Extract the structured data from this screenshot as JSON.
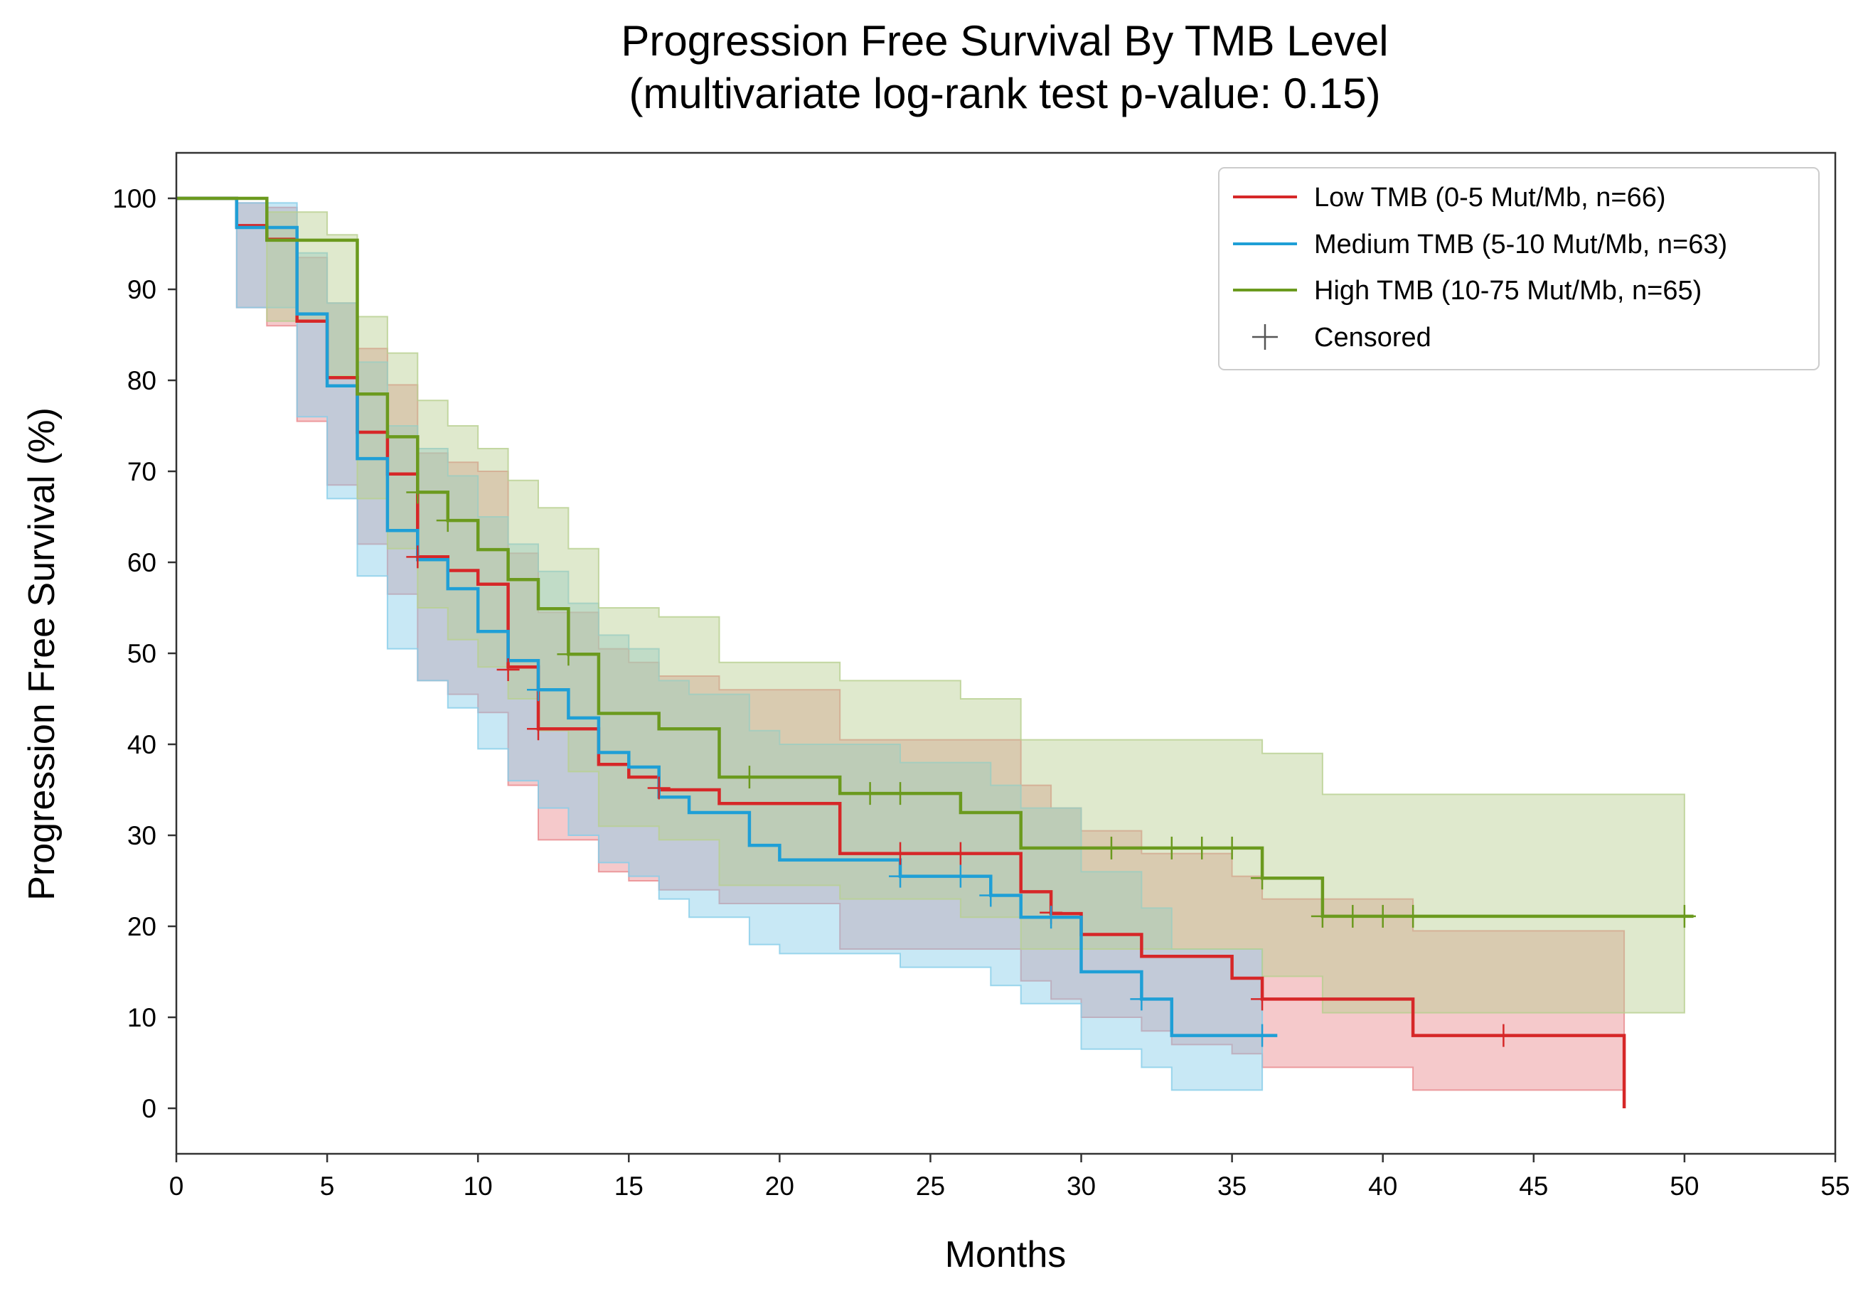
{
  "chart_data": {
    "type": "line",
    "subtype": "kaplan-meier",
    "title": "Progression Free Survival By TMB Level",
    "subtitle": "(multivariate log-rank test p-value: 0.15)",
    "xlabel": "Months",
    "ylabel": "Progression Free Survival (%)",
    "xlim": [
      0,
      55
    ],
    "ylim": [
      -5,
      105
    ],
    "xticks": [
      0,
      5,
      10,
      15,
      20,
      25,
      30,
      35,
      40,
      45,
      50,
      55
    ],
    "yticks": [
      0,
      10,
      20,
      30,
      40,
      50,
      60,
      70,
      80,
      90,
      100
    ],
    "grid": false,
    "legend_position": "top-right",
    "legend": {
      "censored_label": "Censored",
      "censored_color": "#555555"
    },
    "series": [
      {
        "name": "Low TMB (0-5 Mut/Mb, n=66)",
        "color": "#d62728",
        "fill": "#e8888c",
        "steps": [
          [
            0,
            100
          ],
          [
            2,
            97
          ],
          [
            3,
            95.5
          ],
          [
            4,
            86.5
          ],
          [
            5,
            80.3
          ],
          [
            6,
            74.3
          ],
          [
            7,
            69.7
          ],
          [
            8,
            60.6
          ],
          [
            9,
            59.1
          ],
          [
            10,
            57.6
          ],
          [
            11,
            48.5
          ],
          [
            12,
            41.7
          ],
          [
            14,
            37.8
          ],
          [
            15,
            36.4
          ],
          [
            16,
            35
          ],
          [
            18,
            33.5
          ],
          [
            22,
            28
          ],
          [
            28,
            23.8
          ],
          [
            29,
            21.4
          ],
          [
            30,
            19.1
          ],
          [
            32,
            16.7
          ],
          [
            35,
            14.3
          ],
          [
            36,
            12
          ],
          [
            41,
            8
          ],
          [
            48,
            0
          ]
        ],
        "end": 48,
        "ci_lower": [
          [
            0,
            100
          ],
          [
            2,
            88
          ],
          [
            3,
            86
          ],
          [
            4,
            75.5
          ],
          [
            5,
            68.5
          ],
          [
            6,
            62
          ],
          [
            7,
            56.5
          ],
          [
            8,
            47
          ],
          [
            9,
            45.5
          ],
          [
            10,
            43.5
          ],
          [
            11,
            35.5
          ],
          [
            12,
            29.5
          ],
          [
            14,
            26
          ],
          [
            15,
            25
          ],
          [
            16,
            24
          ],
          [
            18,
            22.5
          ],
          [
            22,
            17.5
          ],
          [
            28,
            14
          ],
          [
            29,
            12
          ],
          [
            30,
            10
          ],
          [
            32,
            8.5
          ],
          [
            33,
            7
          ],
          [
            35,
            6
          ],
          [
            36,
            4.5
          ],
          [
            41,
            2
          ],
          [
            48,
            2
          ]
        ],
        "ci_upper": [
          [
            0,
            100
          ],
          [
            2,
            99.5
          ],
          [
            3,
            99
          ],
          [
            4,
            93.5
          ],
          [
            5,
            88.5
          ],
          [
            6,
            83.5
          ],
          [
            7,
            79.5
          ],
          [
            8,
            72
          ],
          [
            9,
            71
          ],
          [
            10,
            70
          ],
          [
            11,
            61
          ],
          [
            12,
            54.5
          ],
          [
            14,
            50.5
          ],
          [
            15,
            49
          ],
          [
            16,
            47.5
          ],
          [
            18,
            46
          ],
          [
            22,
            40.5
          ],
          [
            28,
            35.5
          ],
          [
            29,
            33
          ],
          [
            30,
            30.5
          ],
          [
            32,
            28
          ],
          [
            35,
            25.5
          ],
          [
            36,
            23
          ],
          [
            41,
            19.5
          ],
          [
            48,
            19.5
          ]
        ],
        "censored": [
          [
            8,
            60.6
          ],
          [
            11,
            48.2
          ],
          [
            12,
            41.7
          ],
          [
            16,
            35.2
          ],
          [
            24,
            28
          ],
          [
            26,
            28
          ],
          [
            29,
            21.5
          ],
          [
            36,
            12
          ],
          [
            44,
            8
          ]
        ]
      },
      {
        "name": "Medium TMB (5-10 Mut/Mb, n=63)",
        "color": "#1f9fd6",
        "fill": "#86cde8",
        "steps": [
          [
            0,
            100
          ],
          [
            2,
            96.8
          ],
          [
            4,
            87.3
          ],
          [
            5,
            79.4
          ],
          [
            6,
            71.4
          ],
          [
            7,
            63.5
          ],
          [
            8,
            60.3
          ],
          [
            9,
            57.1
          ],
          [
            10,
            52.4
          ],
          [
            11,
            49.2
          ],
          [
            12,
            46
          ],
          [
            13,
            42.9
          ],
          [
            14,
            39.1
          ],
          [
            15,
            37.5
          ],
          [
            16,
            34.2
          ],
          [
            17,
            32.5
          ],
          [
            19,
            28.9
          ],
          [
            20,
            27.3
          ],
          [
            24,
            25.5
          ],
          [
            27,
            23.4
          ],
          [
            28,
            21
          ],
          [
            30,
            15
          ],
          [
            32,
            12
          ],
          [
            33,
            8
          ],
          [
            36,
            8
          ]
        ],
        "end": 36.5,
        "ci_lower": [
          [
            0,
            100
          ],
          [
            2,
            88
          ],
          [
            4,
            76
          ],
          [
            5,
            67
          ],
          [
            6,
            58.5
          ],
          [
            7,
            50.5
          ],
          [
            8,
            47
          ],
          [
            9,
            44
          ],
          [
            10,
            39.5
          ],
          [
            11,
            36
          ],
          [
            12,
            33
          ],
          [
            13,
            30
          ],
          [
            14,
            27
          ],
          [
            15,
            25.5
          ],
          [
            16,
            23
          ],
          [
            17,
            21
          ],
          [
            19,
            18
          ],
          [
            20,
            17
          ],
          [
            24,
            15.5
          ],
          [
            27,
            13.5
          ],
          [
            28,
            11.5
          ],
          [
            30,
            6.5
          ],
          [
            32,
            4.5
          ],
          [
            33,
            2
          ],
          [
            36,
            2
          ]
        ],
        "ci_upper": [
          [
            0,
            100
          ],
          [
            2,
            99.5
          ],
          [
            4,
            94
          ],
          [
            5,
            88.5
          ],
          [
            6,
            82
          ],
          [
            7,
            75
          ],
          [
            8,
            72.5
          ],
          [
            9,
            69.5
          ],
          [
            10,
            65
          ],
          [
            11,
            62
          ],
          [
            12,
            59
          ],
          [
            13,
            55.5
          ],
          [
            14,
            52
          ],
          [
            15,
            50.5
          ],
          [
            16,
            47
          ],
          [
            17,
            45.5
          ],
          [
            19,
            41.5
          ],
          [
            20,
            40
          ],
          [
            24,
            38
          ],
          [
            27,
            35.5
          ],
          [
            28,
            33
          ],
          [
            30,
            26
          ],
          [
            32,
            22
          ],
          [
            33,
            17.5
          ],
          [
            36,
            17.5
          ]
        ],
        "censored": [
          [
            12,
            46
          ],
          [
            24,
            25.5
          ],
          [
            26,
            25.5
          ],
          [
            27,
            23.4
          ],
          [
            29,
            21
          ],
          [
            32,
            12
          ],
          [
            36,
            8
          ]
        ]
      },
      {
        "name": "High TMB (10-75 Mut/Mb, n=65)",
        "color": "#6b9a1e",
        "fill": "#b8cf90",
        "steps": [
          [
            0,
            100
          ],
          [
            3,
            95.4
          ],
          [
            6,
            90.8
          ],
          [
            6,
            78.5
          ],
          [
            7,
            73.8
          ],
          [
            8,
            67.7
          ],
          [
            9,
            64.6
          ],
          [
            10,
            61.4
          ],
          [
            11,
            58.1
          ],
          [
            12,
            54.9
          ],
          [
            13,
            49.9
          ],
          [
            14,
            43.4
          ],
          [
            16,
            41.7
          ],
          [
            18,
            36.4
          ],
          [
            22,
            34.6
          ],
          [
            26,
            32.5
          ],
          [
            28,
            28.6
          ],
          [
            36,
            25.3
          ],
          [
            38,
            21.1
          ],
          [
            50,
            21.1
          ]
        ],
        "end": 50.3,
        "ci_lower": [
          [
            0,
            100
          ],
          [
            3,
            86.5
          ],
          [
            5,
            80.5
          ],
          [
            6,
            67
          ],
          [
            7,
            61.5
          ],
          [
            8,
            55
          ],
          [
            9,
            51.5
          ],
          [
            10,
            48.5
          ],
          [
            11,
            45
          ],
          [
            12,
            41.5
          ],
          [
            13,
            37
          ],
          [
            14,
            31
          ],
          [
            16,
            29.5
          ],
          [
            18,
            24.5
          ],
          [
            22,
            23
          ],
          [
            26,
            21
          ],
          [
            28,
            17.5
          ],
          [
            36,
            14.5
          ],
          [
            38,
            10.5
          ],
          [
            50,
            10.5
          ]
        ],
        "ci_upper": [
          [
            0,
            100
          ],
          [
            3,
            98.5
          ],
          [
            5,
            96
          ],
          [
            6,
            87
          ],
          [
            7,
            83
          ],
          [
            8,
            77.8
          ],
          [
            9,
            75
          ],
          [
            10,
            72.5
          ],
          [
            11,
            69
          ],
          [
            12,
            66
          ],
          [
            13,
            61.5
          ],
          [
            14,
            55
          ],
          [
            16,
            54
          ],
          [
            18,
            49
          ],
          [
            22,
            47
          ],
          [
            26,
            45
          ],
          [
            28,
            40.5
          ],
          [
            36,
            39
          ],
          [
            38,
            34.5
          ],
          [
            50,
            34.5
          ]
        ],
        "censored": [
          [
            8,
            67.7
          ],
          [
            9,
            64.6
          ],
          [
            13,
            49.9
          ],
          [
            19,
            36.4
          ],
          [
            23,
            34.6
          ],
          [
            24,
            34.6
          ],
          [
            31,
            28.6
          ],
          [
            33,
            28.6
          ],
          [
            34,
            28.6
          ],
          [
            35,
            28.6
          ],
          [
            36,
            25.3
          ],
          [
            38,
            21.1
          ],
          [
            39,
            21.1
          ],
          [
            40,
            21.1
          ],
          [
            41,
            21.1
          ],
          [
            50,
            21.1
          ]
        ]
      }
    ]
  }
}
